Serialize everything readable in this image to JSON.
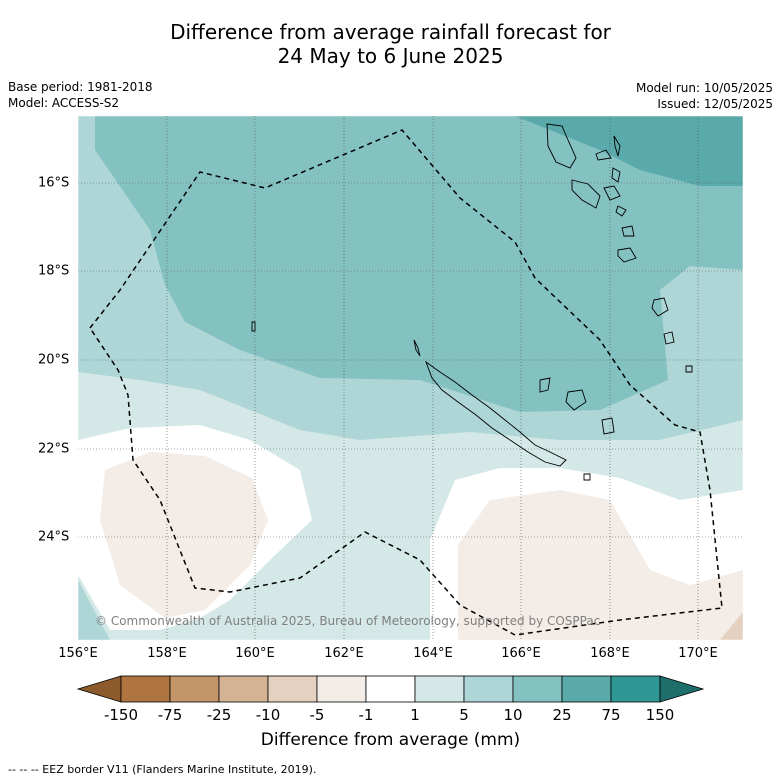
{
  "title": {
    "line1": "Difference from average rainfall forecast for",
    "line2": "24 May to 6 June 2025"
  },
  "meta": {
    "base_period": "Base period: 1981-2018",
    "model": "Model: ACCESS-S2",
    "model_run": "Model run: 10/05/2025",
    "issued": "Issued: 12/05/2025"
  },
  "map": {
    "lon_ticks": [
      "156°E",
      "158°E",
      "160°E",
      "162°E",
      "164°E",
      "166°E",
      "168°E",
      "170°E"
    ],
    "lat_ticks": [
      "16°S",
      "18°S",
      "20°S",
      "22°S",
      "24°S"
    ],
    "credit": "© Commonwealth of Australia 2025, Bureau of Meteorology, supported by COSPPac",
    "features": [
      "New Caledonia",
      "Vanuatu",
      "Loyalty Islands",
      "EEZ boundary"
    ]
  },
  "colorbar": {
    "tick_labels": [
      "-150",
      "-75",
      "-25",
      "-10",
      "-5",
      "-1",
      "1",
      "5",
      "10",
      "25",
      "75",
      "150"
    ],
    "label": "Difference from average (mm)",
    "colors": [
      "#8c5a2b",
      "#ae7540",
      "#c29468",
      "#d4b395",
      "#e5d1bf",
      "#f4ece6",
      "#ffffff",
      "#d3e8e7",
      "#aed6d6",
      "#84c1c1",
      "#5aaaab",
      "#2f9895",
      "#1e6f6c"
    ]
  },
  "legend": {
    "eez": "--  --  -- EEZ border V11 (Flanders Marine Institute, 2019)."
  }
}
